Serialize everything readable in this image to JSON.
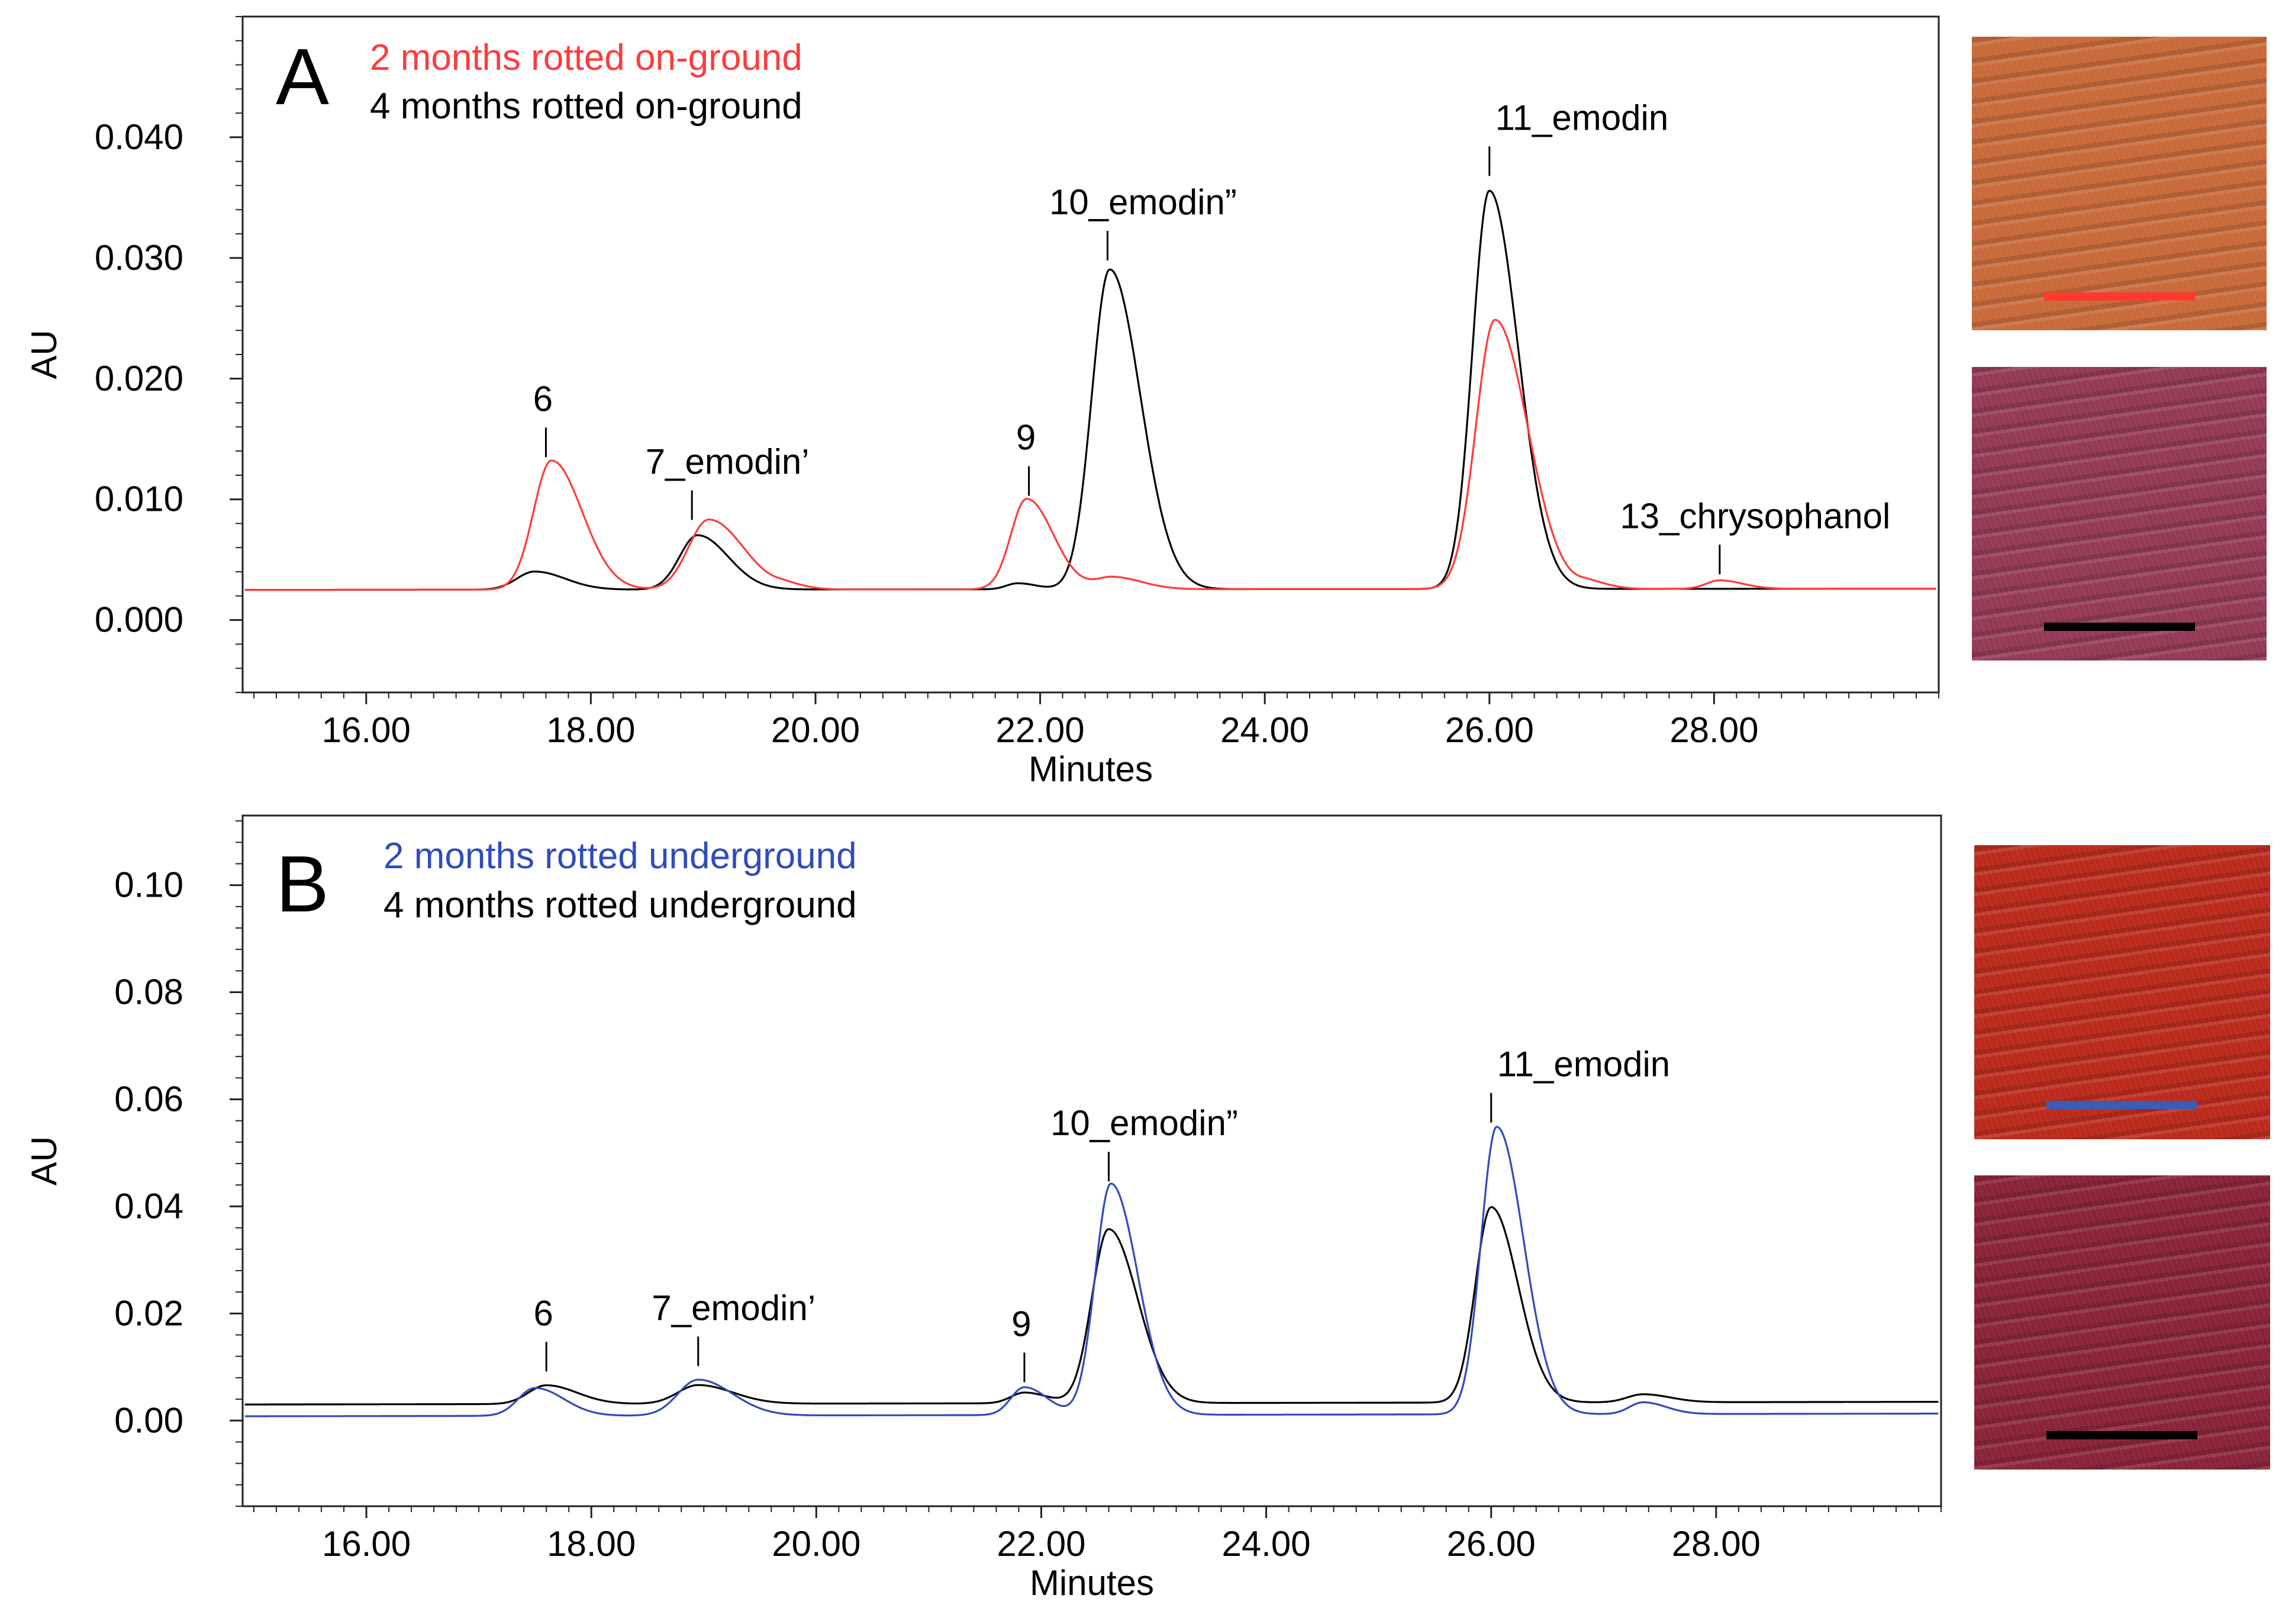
{
  "chart_data": [
    {
      "panel": "A",
      "type": "line",
      "xlabel": "Minutes",
      "ylabel": "AU",
      "xlim": [
        14.9,
        30.0
      ],
      "ylim": [
        -0.006,
        0.05
      ],
      "xticks": [
        "16.00",
        "18.00",
        "20.00",
        "22.00",
        "24.00",
        "26.00",
        "28.00"
      ],
      "yticks": [
        "0.000",
        "0.010",
        "0.020",
        "0.030",
        "0.040"
      ],
      "baseline": 0.0025,
      "series": [
        {
          "name": "2 months rotted on-ground",
          "color": "#ff3b3b",
          "peaks": [
            {
              "x": 17.65,
              "y": 0.0132,
              "w": 0.16
            },
            {
              "x": 19.05,
              "y": 0.0083,
              "w": 0.18
            },
            {
              "x": 19.75,
              "y": 0.0028,
              "w": 0.1
            },
            {
              "x": 21.88,
              "y": 0.01,
              "w": 0.14
            },
            {
              "x": 22.65,
              "y": 0.0035,
              "w": 0.15
            },
            {
              "x": 26.05,
              "y": 0.0248,
              "w": 0.17
            },
            {
              "x": 26.9,
              "y": 0.003,
              "w": 0.1
            },
            {
              "x": 28.05,
              "y": 0.0032,
              "w": 0.12
            }
          ]
        },
        {
          "name": "4 months rotted on-ground",
          "color": "#000000",
          "peaks": [
            {
              "x": 17.5,
              "y": 0.004,
              "w": 0.16
            },
            {
              "x": 18.95,
              "y": 0.007,
              "w": 0.16
            },
            {
              "x": 21.8,
              "y": 0.003,
              "w": 0.1
            },
            {
              "x": 22.62,
              "y": 0.029,
              "w": 0.16
            },
            {
              "x": 26.0,
              "y": 0.0355,
              "w": 0.15
            }
          ]
        }
      ],
      "annotations": [
        {
          "label": "6",
          "x": 17.6,
          "y": 0.0132
        },
        {
          "label": "7_emodin’",
          "x": 18.9,
          "y": 0.008
        },
        {
          "label": "9",
          "x": 21.9,
          "y": 0.01
        },
        {
          "label": "10_emodin”",
          "x": 22.6,
          "y": 0.0295
        },
        {
          "label": "11_emodin",
          "x": 26.0,
          "y": 0.0365
        },
        {
          "label": "13_chrysophanol",
          "x": 28.05,
          "y": 0.0035
        }
      ]
    },
    {
      "panel": "B",
      "type": "line",
      "xlabel": "Minutes",
      "ylabel": "AU",
      "xlim": [
        14.9,
        30.0
      ],
      "ylim": [
        -0.016,
        0.113
      ],
      "xticks": [
        "16.00",
        "18.00",
        "20.00",
        "22.00",
        "24.00",
        "26.00",
        "28.00"
      ],
      "yticks": [
        "0.00",
        "0.02",
        "0.04",
        "0.06",
        "0.08",
        "0.10"
      ],
      "series": [
        {
          "name": "2 months rotted underground",
          "color": "#2f4bbf",
          "baseline": 0.0008,
          "peaks": [
            {
              "x": 17.5,
              "y": 0.006,
              "w": 0.15
            },
            {
              "x": 18.95,
              "y": 0.0075,
              "w": 0.18
            },
            {
              "x": 21.85,
              "y": 0.006,
              "w": 0.12
            },
            {
              "x": 22.62,
              "y": 0.044,
              "w": 0.14
            },
            {
              "x": 26.05,
              "y": 0.0545,
              "w": 0.14
            },
            {
              "x": 27.35,
              "y": 0.003,
              "w": 0.12
            }
          ]
        },
        {
          "name": "4 months rotted underground",
          "color": "#000000",
          "baseline": 0.003,
          "peaks": [
            {
              "x": 17.6,
              "y": 0.0065,
              "w": 0.16
            },
            {
              "x": 18.95,
              "y": 0.0065,
              "w": 0.18
            },
            {
              "x": 21.85,
              "y": 0.005,
              "w": 0.12
            },
            {
              "x": 22.6,
              "y": 0.0355,
              "w": 0.15
            },
            {
              "x": 26.0,
              "y": 0.0395,
              "w": 0.14
            },
            {
              "x": 27.35,
              "y": 0.0045,
              "w": 0.14
            }
          ]
        }
      ],
      "annotations": [
        {
          "label": "6",
          "x": 17.6,
          "y": 0.0085
        },
        {
          "label": "7_emodin’",
          "x": 18.95,
          "y": 0.0095
        },
        {
          "label": "9",
          "x": 21.85,
          "y": 0.0065
        },
        {
          "label": "10_emodin”",
          "x": 22.6,
          "y": 0.044
        },
        {
          "label": "11_emodin",
          "x": 26.0,
          "y": 0.055
        }
      ]
    }
  ],
  "panel_letters": [
    "A",
    "B"
  ],
  "swatches": [
    {
      "name": "2 months rotted on-ground",
      "fiber_color": "#c86a3a",
      "bar_color": "#ff3b2f"
    },
    {
      "name": "4 months rotted on-ground",
      "fiber_color": "#943a55",
      "bar_color": "#000000"
    },
    {
      "name": "2 months rotted underground",
      "fiber_color": "#bb2a1d",
      "bar_color": "#3a5cb5"
    },
    {
      "name": "4 months rotted underground",
      "fiber_color": "#8a2438",
      "bar_color": "#000000"
    }
  ]
}
